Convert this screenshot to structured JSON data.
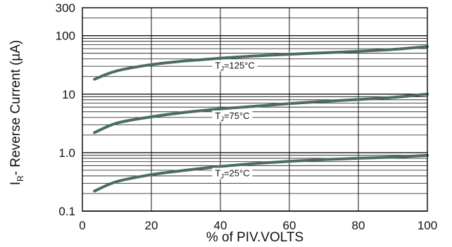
{
  "chart_data": {
    "type": "line",
    "title": "",
    "xlabel": "% of PIV.VOLTS",
    "ylabel": "- Reverse Current (µA)",
    "ylabel_symbol": "I",
    "ylabel_subscript": "R",
    "xlim": [
      0,
      100
    ],
    "ylim": [
      0.1,
      300
    ],
    "yscale": "log",
    "grid": true,
    "x_ticks": [
      "0",
      "20",
      "40",
      "60",
      "80",
      "100"
    ],
    "y_ticks": [
      {
        "value": 0.1,
        "label": "0.1"
      },
      {
        "value": 1,
        "label": "1.0"
      },
      {
        "value": 10,
        "label": "10"
      },
      {
        "value": 100,
        "label": "100"
      },
      {
        "value": 300,
        "label": "300"
      }
    ],
    "series": [
      {
        "label_prefix": "T",
        "label_sub": "J",
        "label_suffix": "=125°C",
        "color": "#4b6b67",
        "x": [
          3.5,
          10,
          20,
          30,
          40,
          50,
          60,
          70,
          80,
          90,
          100
        ],
        "values": [
          18,
          25,
          32,
          37,
          41,
          45,
          48,
          51,
          54,
          58,
          65
        ]
      },
      {
        "label_prefix": "T",
        "label_sub": "J",
        "label_suffix": "=75°C",
        "color": "#4b6b67",
        "x": [
          3.5,
          10,
          20,
          30,
          40,
          50,
          60,
          70,
          80,
          90,
          100
        ],
        "values": [
          2.2,
          3.2,
          4.1,
          4.9,
          5.6,
          6.2,
          6.9,
          7.5,
          8.1,
          8.8,
          10
        ]
      },
      {
        "label_prefix": "T",
        "label_sub": "J",
        "label_suffix": "=25°C",
        "color": "#4b6b67",
        "x": [
          3.5,
          10,
          20,
          30,
          40,
          50,
          60,
          70,
          80,
          90,
          100
        ],
        "values": [
          0.22,
          0.32,
          0.42,
          0.5,
          0.58,
          0.65,
          0.71,
          0.76,
          0.8,
          0.84,
          0.9
        ]
      }
    ]
  }
}
